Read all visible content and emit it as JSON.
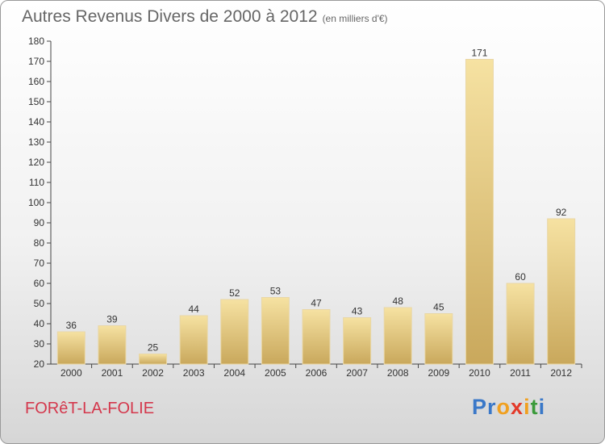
{
  "header": {
    "title": "Autres Revenus Divers de 2000 à 2012",
    "unit": "(en milliers d'€)"
  },
  "footer": {
    "commune": "FORêT-LA-FOLIE",
    "brand": "Proxiti",
    "brand_letters": [
      "P",
      "r",
      "o",
      "x",
      "i",
      "t",
      "i"
    ],
    "brand_colors": [
      "#3a78c8",
      "#3a78c8",
      "#f0a020",
      "#e33a2a",
      "#f0a020",
      "#3a9a3a",
      "#3a78c8"
    ]
  },
  "colors": {
    "bar_light": "#f6e2a2",
    "bar_dark": "#c9a85c",
    "axis": "#444444",
    "text": "#333333",
    "commune": "#d4374c"
  },
  "chart_data": {
    "type": "bar",
    "categories": [
      "2000",
      "2001",
      "2002",
      "2003",
      "2004",
      "2005",
      "2006",
      "2007",
      "2008",
      "2009",
      "2010",
      "2011",
      "2012"
    ],
    "values": [
      36,
      39,
      25,
      44,
      52,
      53,
      47,
      43,
      48,
      45,
      171,
      60,
      92
    ],
    "ylim": [
      20,
      180
    ],
    "yticks": [
      20,
      30,
      40,
      50,
      60,
      70,
      80,
      90,
      100,
      110,
      120,
      130,
      140,
      150,
      160,
      170,
      180
    ],
    "grid": false,
    "data_labels": true,
    "title": "Autres Revenus Divers de 2000 à 2012"
  }
}
